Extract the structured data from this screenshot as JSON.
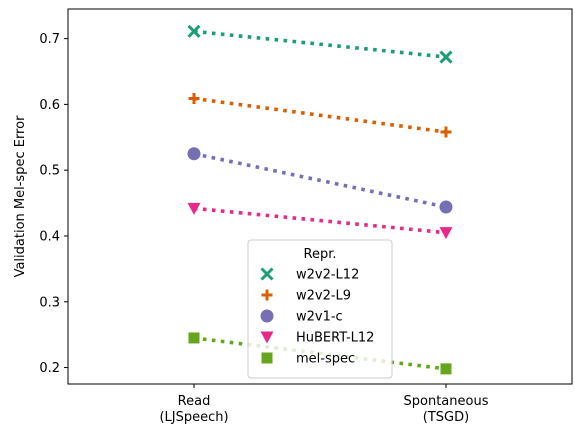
{
  "chart_data": {
    "type": "line",
    "categories": [
      [
        "Read",
        "(LJSpeech)"
      ],
      [
        "Spontaneous",
        "(TSGD)"
      ]
    ],
    "ylabel": "Validation Mel-spec Error",
    "xlabel": "",
    "ylim": [
      0.175,
      0.745
    ],
    "yticks": [
      "0.2",
      "0.3",
      "0.4",
      "0.5",
      "0.6",
      "0.7"
    ],
    "grid": false,
    "legend": {
      "title": "Repr.",
      "placement": "lower center"
    },
    "series": [
      {
        "name": "w2v2-L12",
        "values": [
          0.711,
          0.672
        ],
        "color": "#1b9e77",
        "marker": "x"
      },
      {
        "name": "w2v2-L9",
        "values": [
          0.609,
          0.558
        ],
        "color": "#d95f02",
        "marker": "plus"
      },
      {
        "name": "w2v1-c",
        "values": [
          0.525,
          0.444
        ],
        "color": "#7570b3",
        "marker": "circle"
      },
      {
        "name": "HuBERT-L12",
        "values": [
          0.442,
          0.405
        ],
        "color": "#e7298a",
        "marker": "triangle-down"
      },
      {
        "name": "mel-spec",
        "values": [
          0.245,
          0.198
        ],
        "color": "#66a61e",
        "marker": "square"
      }
    ]
  }
}
